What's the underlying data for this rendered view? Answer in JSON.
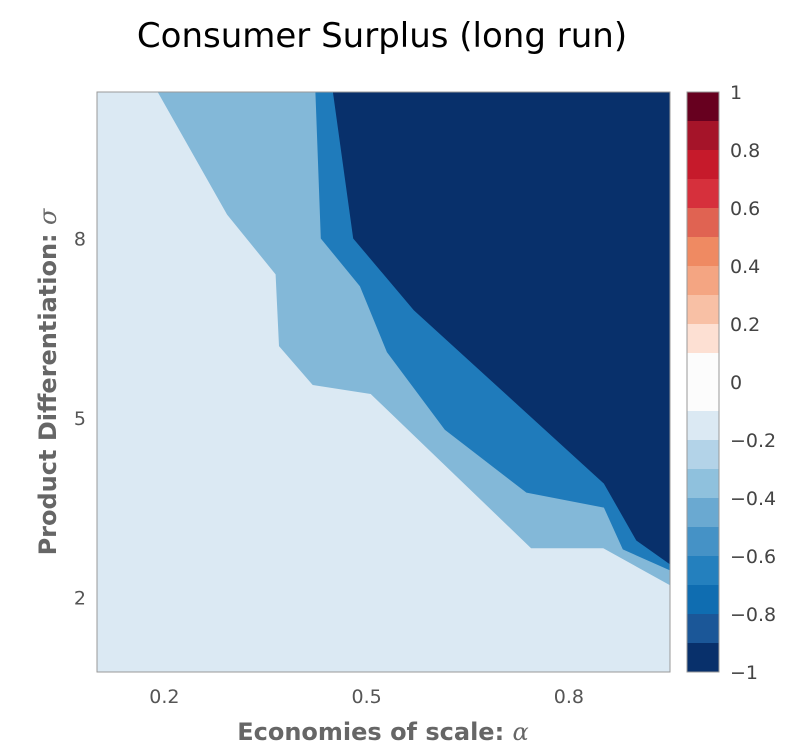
{
  "chart_data": {
    "type": "contour",
    "title": "Consumer Surplus (long run)",
    "xlabel": "Economies of scale: ",
    "xlabel_symbol": "α",
    "ylabel": "Product Differentiation: ",
    "ylabel_symbol": "σ",
    "xlim": [
      0.1,
      0.95
    ],
    "ylim": [
      0.75,
      10.45
    ],
    "x_ticks": [
      0.2,
      0.5,
      0.8
    ],
    "x_tick_labels": [
      "0.2",
      "0.5",
      "0.8"
    ],
    "y_ticks": [
      2,
      5,
      8
    ],
    "y_tick_labels": [
      "2",
      "5",
      "8"
    ],
    "grid": false,
    "legend": "colorbar-right",
    "background_level": -0.2,
    "regions": [
      {
        "level": -0.4,
        "color": "#83b8d8",
        "boundary": [
          [
            0.19,
            10.45
          ],
          [
            0.293,
            8.4
          ],
          [
            0.365,
            7.4
          ],
          [
            0.37,
            6.2
          ],
          [
            0.42,
            5.55
          ],
          [
            0.506,
            5.4
          ],
          [
            0.744,
            2.82
          ],
          [
            0.851,
            2.82
          ],
          [
            0.951,
            2.2
          ],
          [
            0.951,
            10.45
          ]
        ]
      },
      {
        "level": -0.6,
        "color": "#1f7bbb",
        "boundary": [
          [
            0.424,
            10.45
          ],
          [
            0.432,
            8.0
          ],
          [
            0.49,
            7.2
          ],
          [
            0.53,
            6.1
          ],
          [
            0.616,
            4.8
          ],
          [
            0.737,
            3.75
          ],
          [
            0.852,
            3.5
          ],
          [
            0.88,
            2.8
          ],
          [
            0.951,
            2.45
          ],
          [
            0.951,
            10.45
          ]
        ]
      },
      {
        "level": -1,
        "color": "#08306b",
        "boundary": [
          [
            0.45,
            10.45
          ],
          [
            0.48,
            8.0
          ],
          [
            0.57,
            6.8
          ],
          [
            0.852,
            3.9
          ],
          [
            0.9,
            2.95
          ],
          [
            0.951,
            2.55
          ],
          [
            0.951,
            10.45
          ]
        ]
      }
    ],
    "colorbar": {
      "min": -1,
      "max": 1,
      "tick_values": [
        1,
        0.8,
        0.6,
        0.4,
        0.2,
        0,
        -0.2,
        -0.4,
        -0.6,
        -0.8,
        -1
      ],
      "tick_labels": [
        "1",
        "0.8",
        "0.6",
        "0.4",
        "0.2",
        "0",
        "−0.2",
        "−0.4",
        "−0.6",
        "−0.8",
        "−1"
      ],
      "bands": [
        {
          "from": 0.9,
          "to": 1.0,
          "color": "#67001f"
        },
        {
          "from": 0.8,
          "to": 0.9,
          "color": "#a51429"
        },
        {
          "from": 0.7,
          "to": 0.8,
          "color": "#c61a2b"
        },
        {
          "from": 0.6,
          "to": 0.7,
          "color": "#d6303c"
        },
        {
          "from": 0.5,
          "to": 0.6,
          "color": "#e06352"
        },
        {
          "from": 0.4,
          "to": 0.5,
          "color": "#ef8a62"
        },
        {
          "from": 0.3,
          "to": 0.4,
          "color": "#f4a582"
        },
        {
          "from": 0.2,
          "to": 0.3,
          "color": "#f8c0a5"
        },
        {
          "from": 0.1,
          "to": 0.2,
          "color": "#fde0d3"
        },
        {
          "from": -0.1,
          "to": 0.1,
          "color": "#fcfcfc"
        },
        {
          "from": -0.2,
          "to": -0.1,
          "color": "#dbe9f3"
        },
        {
          "from": -0.3,
          "to": -0.2,
          "color": "#b3d3e8"
        },
        {
          "from": -0.4,
          "to": -0.3,
          "color": "#8fc1dd"
        },
        {
          "from": -0.5,
          "to": -0.4,
          "color": "#6aa9d1"
        },
        {
          "from": -0.6,
          "to": -0.5,
          "color": "#4592c6"
        },
        {
          "from": -0.7,
          "to": -0.6,
          "color": "#2480be"
        },
        {
          "from": -0.8,
          "to": -0.7,
          "color": "#0f6db1"
        },
        {
          "from": -0.9,
          "to": -0.8,
          "color": "#1b5798"
        },
        {
          "from": -1.0,
          "to": -0.9,
          "color": "#08306b"
        }
      ]
    }
  }
}
